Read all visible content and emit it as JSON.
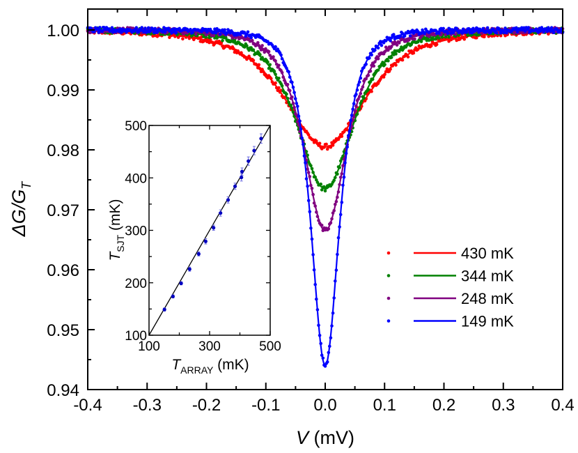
{
  "chart_data": [
    {
      "type": "scatter",
      "role": "main",
      "title": "",
      "xlabel": "V (mV)",
      "xlabel_italic_part": "V",
      "xlabel_unit": "(mV)",
      "ylabel": "ΔG/G_T",
      "xlim": [
        -0.4,
        0.4
      ],
      "ylim": [
        0.94,
        1.003
      ],
      "x_ticks": [
        -0.4,
        -0.3,
        -0.2,
        -0.1,
        0.0,
        0.1,
        0.2,
        0.3,
        0.4
      ],
      "x_tick_labels": [
        "-0.4",
        "-0.3",
        "-0.2",
        "-0.1",
        "0.0",
        "0.1",
        "0.2",
        "0.3",
        "0.4"
      ],
      "y_ticks": [
        0.94,
        0.95,
        0.96,
        0.97,
        0.98,
        0.99,
        1.0
      ],
      "y_tick_labels": [
        "0.94",
        "0.95",
        "0.96",
        "0.97",
        "0.98",
        "0.99",
        "1.00"
      ],
      "grid": false,
      "legend_position": "right-center",
      "description": "Dotted measured data with solid-line fits of conductance dips centered at V=0 for four temperatures",
      "series": [
        {
          "name": "430 mK",
          "color": "#ff0000",
          "min_value": 0.9805,
          "center": 0.0,
          "half_width_mV": 0.085,
          "points": [
            [
              -0.4,
              1.0
            ],
            [
              -0.3,
              1.0
            ],
            [
              -0.2,
              0.9985
            ],
            [
              -0.15,
              0.996
            ],
            [
              -0.1,
              0.9915
            ],
            [
              -0.075,
              0.988
            ],
            [
              -0.05,
              0.984
            ],
            [
              -0.025,
              0.9815
            ],
            [
              0.0,
              0.9805
            ],
            [
              0.025,
              0.9815
            ],
            [
              0.05,
              0.984
            ],
            [
              0.075,
              0.988
            ],
            [
              0.1,
              0.9915
            ],
            [
              0.15,
              0.996
            ],
            [
              0.2,
              0.9985
            ],
            [
              0.3,
              1.0
            ],
            [
              0.4,
              1.0
            ]
          ]
        },
        {
          "name": "344 mK",
          "color": "#008000",
          "min_value": 0.9735,
          "center": 0.0,
          "half_width_mV": 0.06,
          "points": [
            [
              -0.4,
              1.0
            ],
            [
              -0.3,
              1.0
            ],
            [
              -0.2,
              0.999
            ],
            [
              -0.15,
              0.997
            ],
            [
              -0.1,
              0.9925
            ],
            [
              -0.075,
              0.987
            ],
            [
              -0.05,
              0.98
            ],
            [
              -0.025,
              0.975
            ],
            [
              0.0,
              0.9735
            ],
            [
              0.025,
              0.975
            ],
            [
              0.05,
              0.98
            ],
            [
              0.075,
              0.987
            ],
            [
              0.1,
              0.9925
            ],
            [
              0.15,
              0.997
            ],
            [
              0.2,
              0.999
            ],
            [
              0.3,
              1.0
            ],
            [
              0.4,
              1.0
            ]
          ]
        },
        {
          "name": "248 mK",
          "color": "#800080",
          "min_value": 0.9665,
          "center": 0.0,
          "half_width_mV": 0.045,
          "points": [
            [
              -0.4,
              1.0
            ],
            [
              -0.3,
              1.0
            ],
            [
              -0.2,
              0.9995
            ],
            [
              -0.15,
              0.9985
            ],
            [
              -0.1,
              0.995
            ],
            [
              -0.075,
              0.989
            ],
            [
              -0.05,
              0.979
            ],
            [
              -0.025,
              0.969
            ],
            [
              0.0,
              0.9665
            ],
            [
              0.025,
              0.969
            ],
            [
              0.05,
              0.979
            ],
            [
              0.075,
              0.989
            ],
            [
              0.1,
              0.995
            ],
            [
              0.15,
              0.9985
            ],
            [
              0.2,
              0.9995
            ],
            [
              0.3,
              1.0
            ],
            [
              0.4,
              1.0
            ]
          ]
        },
        {
          "name": "149 mK",
          "color": "#0000ff",
          "min_value": 0.944,
          "center": 0.0,
          "half_width_mV": 0.03,
          "points": [
            [
              -0.4,
              1.0
            ],
            [
              -0.3,
              1.0
            ],
            [
              -0.2,
              0.9998
            ],
            [
              -0.15,
              0.9992
            ],
            [
              -0.1,
              0.9975
            ],
            [
              -0.075,
              0.993
            ],
            [
              -0.05,
              0.981
            ],
            [
              -0.025,
              0.959
            ],
            [
              0.0,
              0.944
            ],
            [
              0.025,
              0.959
            ],
            [
              0.05,
              0.981
            ],
            [
              0.075,
              0.993
            ],
            [
              0.1,
              0.9975
            ],
            [
              0.15,
              0.9992
            ],
            [
              0.2,
              0.9998
            ],
            [
              0.3,
              1.0
            ],
            [
              0.4,
              1.0
            ]
          ]
        }
      ]
    },
    {
      "type": "scatter",
      "role": "inset",
      "title": "",
      "xlabel": "T_ARRAY (mK)",
      "ylabel": "T_SJT (mK)",
      "xlim": [
        100,
        500
      ],
      "ylim": [
        100,
        500
      ],
      "x_ticks": [
        100,
        300,
        500
      ],
      "x_tick_labels": [
        "100",
        "300",
        "500"
      ],
      "y_ticks": [
        100,
        200,
        300,
        400,
        500
      ],
      "y_tick_labels": [
        "100",
        "200",
        "300",
        "400",
        "500"
      ],
      "grid": false,
      "reference_line": {
        "from": [
          100,
          100
        ],
        "to": [
          500,
          500
        ],
        "color": "#000000"
      },
      "series": [
        {
          "name": "T_SJT vs T_ARRAY",
          "color": "#0000c0",
          "error_bars": true,
          "x": [
            151,
            179,
            206,
            234,
            264,
            287,
            313,
            336,
            361,
            384,
            405,
            407,
            428,
            447,
            470
          ],
          "y": [
            149,
            174,
            199,
            226,
            255,
            279,
            305,
            333,
            358,
            384,
            401,
            412,
            432,
            452,
            475
          ],
          "yerr": [
            3,
            3,
            3,
            4,
            4,
            5,
            5,
            6,
            6,
            6,
            7,
            7,
            8,
            8,
            9
          ]
        }
      ]
    }
  ],
  "axes": {
    "main": {
      "xlabel_var": "V",
      "xlabel_unit": " (mV)",
      "ylabel_delta": "Δ",
      "ylabel_num": "G/G",
      "ylabel_sub": "T"
    },
    "inset": {
      "xlabel_var": "T",
      "xlabel_sub": "ARRAY",
      "xlabel_unit": " (mK)",
      "ylabel_var": "T",
      "ylabel_sub": "SJT",
      "ylabel_unit": " (mK)"
    }
  },
  "legend": {
    "items": [
      {
        "label": "430 mK",
        "color": "#ff0000"
      },
      {
        "label": "344 mK",
        "color": "#008000"
      },
      {
        "label": "248 mK",
        "color": "#800080"
      },
      {
        "label": "149 mK",
        "color": "#0000ff"
      }
    ]
  }
}
